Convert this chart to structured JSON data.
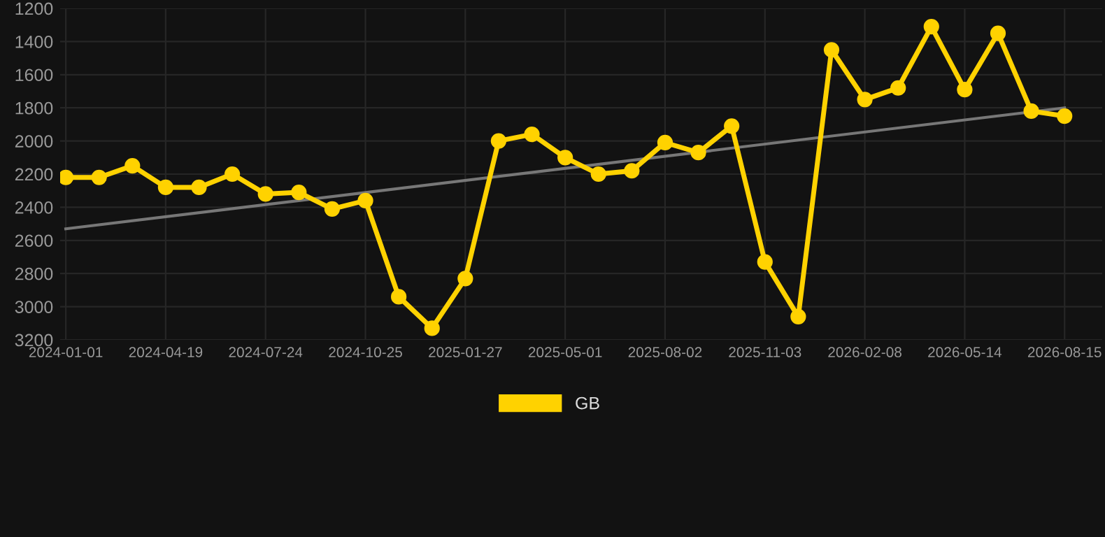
{
  "chart_data": {
    "type": "line",
    "categories": [
      "2024-01-01",
      null,
      null,
      "2024-04-19",
      null,
      null,
      "2024-07-24",
      null,
      null,
      "2024-10-25",
      null,
      null,
      "2025-01-27",
      null,
      null,
      "2025-05-01",
      null,
      null,
      "2025-08-02",
      null,
      null,
      "2025-11-03",
      null,
      null,
      "2026-02-08",
      null,
      null,
      "2026-05-14",
      null,
      null,
      "2026-08-15"
    ],
    "series": [
      {
        "name": "GB",
        "color": "#ffd200",
        "values": [
          2220,
          2220,
          2150,
          2280,
          2280,
          2200,
          2320,
          2310,
          2410,
          2360,
          2940,
          3130,
          2830,
          2000,
          1960,
          2100,
          2200,
          2180,
          2010,
          2070,
          1910,
          2730,
          3060,
          1450,
          1750,
          1680,
          1310,
          1690,
          1350,
          1820,
          1850
        ]
      },
      {
        "type": "line",
        "color": "#777777",
        "marker": "none",
        "values": [
          2530,
          null,
          null,
          null,
          null,
          null,
          null,
          null,
          null,
          null,
          null,
          null,
          null,
          null,
          null,
          null,
          null,
          null,
          null,
          null,
          null,
          null,
          null,
          null,
          null,
          null,
          null,
          null,
          null,
          null,
          1800
        ]
      }
    ],
    "ylim": [
      3200,
      1200
    ],
    "yticks": [
      1200,
      1400,
      1600,
      1800,
      2000,
      2200,
      2400,
      2600,
      2800,
      3000,
      3200
    ],
    "grid": true,
    "legend": "bottom",
    "marker": "circle",
    "line_style": "solid"
  }
}
